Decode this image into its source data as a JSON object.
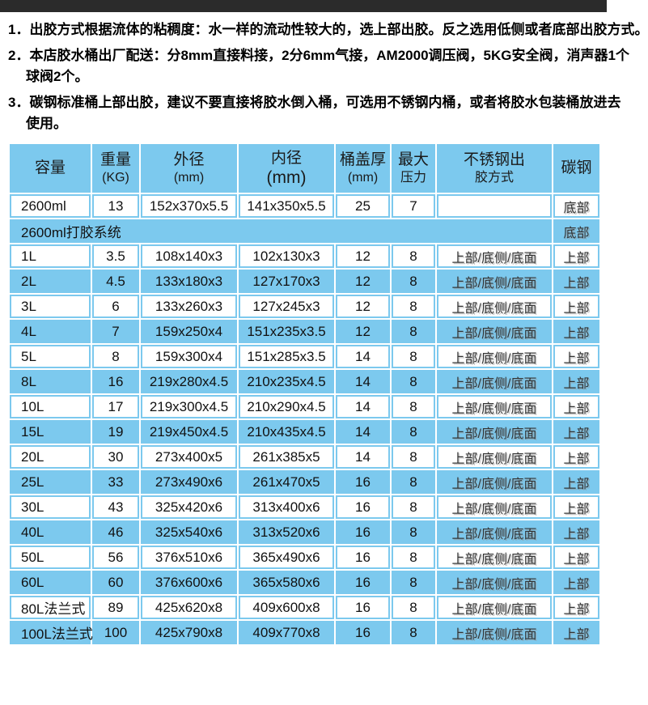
{
  "colors": {
    "accent_blue": "#7cc9ee",
    "top_bar": "#2b2b2b"
  },
  "notes": [
    {
      "lines": [
        "1．出胶方式根据流体的粘稠度：水一样的流动性较大的，选上部出胶。反之选用低侧或者底部出胶方式。"
      ]
    },
    {
      "lines": [
        "2．本店胶水桶出厂配送：分8mm直接料接，2分6mm气接，AM2000调压阀，5KG安全阀，消声器1个",
        "球阀2个。"
      ]
    },
    {
      "lines": [
        "3．碳钢标准桶上部出胶，建议不要直接将胶水倒入桶，可选用不锈钢内桶，或者将胶水包装桶放进去",
        "使用。"
      ]
    }
  ],
  "table": {
    "headers": [
      {
        "line1": "容量",
        "line2": ""
      },
      {
        "line1": "重量",
        "line2": "(KG)"
      },
      {
        "line1": "外径",
        "line2": "(mm)"
      },
      {
        "line1": "内径",
        "line2": "(mm)"
      },
      {
        "line1": "桶盖厚",
        "line2": "(mm)"
      },
      {
        "line1": "最大",
        "line2": "压力"
      },
      {
        "line1": "不锈钢出",
        "line2": "胶方式"
      },
      {
        "line1": "碳钢",
        "line2": ""
      }
    ],
    "rows": [
      {
        "cells": [
          "2600ml",
          "13",
          "152x370x5.5",
          "141x350x5.5",
          "25",
          "7",
          "",
          "底部"
        ]
      },
      {
        "merged": "2600ml打胶系统",
        "carbon": "底部"
      },
      {
        "cells": [
          "1L",
          "3.5",
          "108x140x3",
          "102x130x3",
          "12",
          "8",
          "上部/底侧/底面",
          "上部"
        ]
      },
      {
        "cells": [
          "2L",
          "4.5",
          "133x180x3",
          "127x170x3",
          "12",
          "8",
          "上部/底侧/底面",
          "上部"
        ]
      },
      {
        "cells": [
          "3L",
          "6",
          "133x260x3",
          "127x245x3",
          "12",
          "8",
          "上部/底侧/底面",
          "上部"
        ]
      },
      {
        "cells": [
          "4L",
          "7",
          "159x250x4",
          "151x235x3.5",
          "12",
          "8",
          "上部/底侧/底面",
          "上部"
        ]
      },
      {
        "cells": [
          "5L",
          "8",
          "159x300x4",
          "151x285x3.5",
          "14",
          "8",
          "上部/底侧/底面",
          "上部"
        ]
      },
      {
        "cells": [
          "8L",
          "16",
          "219x280x4.5",
          "210x235x4.5",
          "14",
          "8",
          "上部/底侧/底面",
          "上部"
        ]
      },
      {
        "cells": [
          "10L",
          "17",
          "219x300x4.5",
          "210x290x4.5",
          "14",
          "8",
          "上部/底侧/底面",
          "上部"
        ]
      },
      {
        "cells": [
          "15L",
          "19",
          "219x450x4.5",
          "210x435x4.5",
          "14",
          "8",
          "上部/底侧/底面",
          "上部"
        ]
      },
      {
        "cells": [
          "20L",
          "30",
          "273x400x5",
          "261x385x5",
          "14",
          "8",
          "上部/底侧/底面",
          "上部"
        ]
      },
      {
        "cells": [
          "25L",
          "33",
          "273x490x6",
          "261x470x5",
          "16",
          "8",
          "上部/底侧/底面",
          "上部"
        ]
      },
      {
        "cells": [
          "30L",
          "43",
          "325x420x6",
          "313x400x6",
          "16",
          "8",
          "上部/底侧/底面",
          "上部"
        ]
      },
      {
        "cells": [
          "40L",
          "46",
          "325x540x6",
          "313x520x6",
          "16",
          "8",
          "上部/底侧/底面",
          "上部"
        ]
      },
      {
        "cells": [
          "50L",
          "56",
          "376x510x6",
          "365x490x6",
          "16",
          "8",
          "上部/底侧/底面",
          "上部"
        ]
      },
      {
        "cells": [
          "60L",
          "60",
          "376x600x6",
          "365x580x6",
          "16",
          "8",
          "上部/底侧/底面",
          "上部"
        ]
      },
      {
        "cells": [
          "80L法兰式",
          "89",
          "425x620x8",
          "409x600x8",
          "16",
          "8",
          "上部/底侧/底面",
          "上部"
        ]
      },
      {
        "cells": [
          "100L法兰式",
          "100",
          "425x790x8",
          "409x770x8",
          "16",
          "8",
          "上部/底侧/底面",
          "上部"
        ]
      }
    ]
  }
}
